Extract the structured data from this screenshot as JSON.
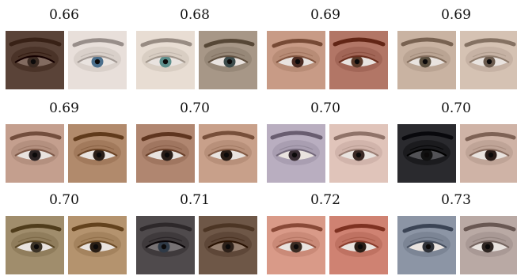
{
  "figure": {
    "pairs": [
      {
        "score": "0.66",
        "images": [
          {
            "skin": "#5a4338",
            "iris": "#3a2a22",
            "tone": "dark"
          },
          {
            "skin": "#e8dfda",
            "iris": "#4b6f8c",
            "tone": "light"
          }
        ]
      },
      {
        "score": "0.68",
        "images": [
          {
            "skin": "#e8ddd3",
            "iris": "#5d8f8c",
            "tone": "light"
          },
          {
            "skin": "#a79787",
            "iris": "#3d4c4c",
            "tone": "mid"
          }
        ]
      },
      {
        "score": "0.69",
        "images": [
          {
            "skin": "#c89b86",
            "iris": "#4a2b22",
            "tone": "mid"
          },
          {
            "skin": "#b27666",
            "iris": "#5a3a2a",
            "tone": "mid"
          }
        ]
      },
      {
        "score": "0.69",
        "images": [
          {
            "skin": "#c9b3a2",
            "iris": "#5b5040",
            "tone": "mid"
          },
          {
            "skin": "#d5c2b3",
            "iris": "#6b5b4e",
            "tone": "light"
          }
        ]
      },
      {
        "score": "0.69",
        "images": [
          {
            "skin": "#c49f8e",
            "iris": "#2c2323",
            "tone": "mid"
          },
          {
            "skin": "#b18a6c",
            "iris": "#2b1f18",
            "tone": "mid"
          }
        ]
      },
      {
        "score": "0.70",
        "images": [
          {
            "skin": "#b08670",
            "iris": "#2a1e18",
            "tone": "mid"
          },
          {
            "skin": "#c8a08a",
            "iris": "#2a1d16",
            "tone": "mid"
          }
        ]
      },
      {
        "score": "0.70",
        "images": [
          {
            "skin": "#b9aec0",
            "iris": "#3a2e35",
            "tone": "light"
          },
          {
            "skin": "#e0c4ba",
            "iris": "#3b2a26",
            "tone": "light"
          }
        ]
      },
      {
        "score": "0.70",
        "images": [
          {
            "skin": "#2a2a2e",
            "iris": "#111111",
            "tone": "dark"
          },
          {
            "skin": "#cfb3a6",
            "iris": "#2a1d19",
            "tone": "mid"
          }
        ]
      },
      {
        "score": "0.70",
        "images": [
          {
            "skin": "#a08d6c",
            "iris": "#3c3326",
            "tone": "mid"
          },
          {
            "skin": "#b4936e",
            "iris": "#2a1e14",
            "tone": "mid"
          }
        ]
      },
      {
        "score": "0.71",
        "images": [
          {
            "skin": "#4f4a4c",
            "iris": "#2f3a47",
            "tone": "dark"
          },
          {
            "skin": "#6e5747",
            "iris": "#2d2018",
            "tone": "dark"
          }
        ]
      },
      {
        "score": "0.72",
        "images": [
          {
            "skin": "#d99a88",
            "iris": "#3a2b22",
            "tone": "mid"
          },
          {
            "skin": "#cf8272",
            "iris": "#2a1d16",
            "tone": "mid"
          }
        ]
      },
      {
        "score": "0.73",
        "images": [
          {
            "skin": "#8c95a5",
            "iris": "#2e3138",
            "tone": "mid"
          },
          {
            "skin": "#b9a9a4",
            "iris": "#2f2622",
            "tone": "light"
          }
        ]
      }
    ]
  }
}
